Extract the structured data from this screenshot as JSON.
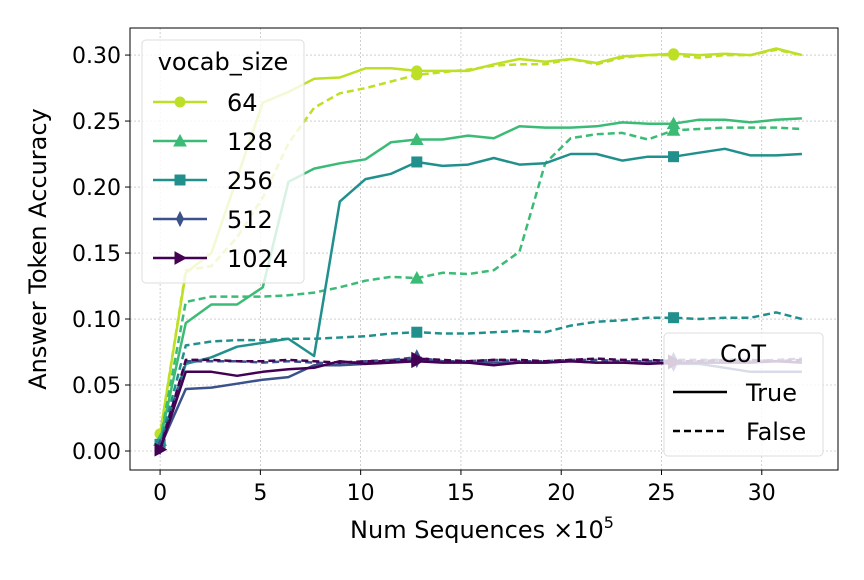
{
  "chart_data": {
    "type": "line",
    "title": "",
    "xlabel": "Num Sequences",
    "xlabel_multiplier": "×10",
    "xlabel_exponent": "5",
    "ylabel": "Answer Token Accuracy",
    "xlim": [
      -1.5,
      33.8
    ],
    "ylim": [
      -0.0144,
      0.3205
    ],
    "xticks": [
      0,
      5,
      10,
      15,
      20,
      25,
      30
    ],
    "xtick_labels": [
      "0",
      "5",
      "10",
      "15",
      "20",
      "25",
      "30"
    ],
    "yticks": [
      0,
      0.05,
      0.1,
      0.15,
      0.2,
      0.25,
      0.3
    ],
    "ytick_labels": [
      "0.00",
      "0.05",
      "0.10",
      "0.15",
      "0.20",
      "0.25",
      "0.30"
    ],
    "grid": true,
    "x": [
      0,
      1.28,
      2.56,
      3.84,
      5.12,
      6.4,
      7.68,
      8.96,
      10.24,
      11.52,
      12.8,
      14.08,
      15.36,
      16.64,
      17.92,
      19.2,
      20.48,
      21.76,
      23.04,
      24.32,
      25.6,
      26.88,
      28.16,
      29.44,
      30.72,
      32
    ],
    "marker_indices": [
      0,
      10,
      20
    ],
    "legend_vocab": {
      "title": "vocab_size",
      "placement": "upper-left",
      "entries": [
        {
          "label": "64",
          "color": "#bddf26",
          "marker": "circle"
        },
        {
          "label": "128",
          "color": "#3bbb75",
          "marker": "triangle-up"
        },
        {
          "label": "256",
          "color": "#21908d",
          "marker": "square"
        },
        {
          "label": "512",
          "color": "#3b528b",
          "marker": "thin-diamond"
        },
        {
          "label": "1024",
          "color": "#440154",
          "marker": "triangle-right"
        }
      ]
    },
    "legend_cot": {
      "title": "CoT",
      "placement": "lower-right",
      "entries": [
        {
          "label": "True",
          "style": "solid"
        },
        {
          "label": "False",
          "style": "dashed"
        }
      ]
    },
    "series": [
      {
        "vocab": "64",
        "cot": "True",
        "values": [
          0.013,
          0.135,
          0.15,
          0.207,
          0.264,
          0.272,
          0.282,
          0.283,
          0.29,
          0.29,
          0.288,
          0.288,
          0.288,
          0.293,
          0.297,
          0.295,
          0.297,
          0.294,
          0.299,
          0.3,
          0.301,
          0.3,
          0.301,
          0.3,
          0.305,
          0.3
        ]
      },
      {
        "vocab": "64",
        "cot": "False",
        "values": [
          0.013,
          0.137,
          0.14,
          0.162,
          0.192,
          0.233,
          0.26,
          0.271,
          0.275,
          0.28,
          0.285,
          0.287,
          0.289,
          0.292,
          0.293,
          0.293,
          0.297,
          0.293,
          0.298,
          0.3,
          0.3,
          0.298,
          0.3,
          0.3,
          0.304,
          0.3
        ]
      },
      {
        "vocab": "128",
        "cot": "True",
        "values": [
          0.008,
          0.097,
          0.111,
          0.111,
          0.124,
          0.204,
          0.214,
          0.218,
          0.221,
          0.234,
          0.236,
          0.236,
          0.239,
          0.237,
          0.246,
          0.245,
          0.245,
          0.246,
          0.249,
          0.248,
          0.248,
          0.251,
          0.251,
          0.249,
          0.251,
          0.252
        ]
      },
      {
        "vocab": "128",
        "cot": "False",
        "values": [
          0.008,
          0.113,
          0.117,
          0.117,
          0.117,
          0.118,
          0.12,
          0.124,
          0.129,
          0.132,
          0.131,
          0.135,
          0.134,
          0.137,
          0.151,
          0.218,
          0.237,
          0.24,
          0.241,
          0.236,
          0.243,
          0.244,
          0.245,
          0.245,
          0.245,
          0.244
        ]
      },
      {
        "vocab": "256",
        "cot": "True",
        "values": [
          0.005,
          0.066,
          0.071,
          0.079,
          0.082,
          0.085,
          0.072,
          0.189,
          0.206,
          0.21,
          0.219,
          0.216,
          0.217,
          0.222,
          0.217,
          0.218,
          0.225,
          0.225,
          0.22,
          0.223,
          0.223,
          0.226,
          0.229,
          0.224,
          0.224,
          0.225
        ]
      },
      {
        "vocab": "256",
        "cot": "False",
        "values": [
          0.005,
          0.08,
          0.083,
          0.084,
          0.084,
          0.085,
          0.085,
          0.086,
          0.087,
          0.089,
          0.09,
          0.089,
          0.089,
          0.09,
          0.091,
          0.09,
          0.095,
          0.098,
          0.099,
          0.101,
          0.101,
          0.1,
          0.101,
          0.101,
          0.105,
          0.1
        ]
      },
      {
        "vocab": "512",
        "cot": "True",
        "values": [
          0.003,
          0.047,
          0.048,
          0.051,
          0.054,
          0.056,
          0.065,
          0.065,
          0.066,
          0.069,
          0.069,
          0.068,
          0.067,
          0.067,
          0.067,
          0.067,
          0.068,
          0.067,
          0.067,
          0.067,
          0.066,
          0.066,
          0.063,
          0.06,
          0.06,
          0.06
        ]
      },
      {
        "vocab": "512",
        "cot": "False",
        "values": [
          0.003,
          0.068,
          0.068,
          0.068,
          0.067,
          0.068,
          0.067,
          0.066,
          0.068,
          0.069,
          0.071,
          0.068,
          0.068,
          0.069,
          0.068,
          0.068,
          0.069,
          0.069,
          0.068,
          0.068,
          0.069,
          0.069,
          0.069,
          0.068,
          0.069,
          0.07
        ]
      },
      {
        "vocab": "1024",
        "cot": "True",
        "values": [
          0.001,
          0.06,
          0.06,
          0.057,
          0.06,
          0.062,
          0.063,
          0.068,
          0.066,
          0.067,
          0.068,
          0.067,
          0.067,
          0.065,
          0.067,
          0.067,
          0.068,
          0.067,
          0.067,
          0.066,
          0.067,
          0.067,
          0.067,
          0.067,
          0.068,
          0.067
        ]
      },
      {
        "vocab": "1024",
        "cot": "False",
        "values": [
          0.001,
          0.069,
          0.069,
          0.068,
          0.068,
          0.069,
          0.068,
          0.067,
          0.068,
          0.068,
          0.07,
          0.069,
          0.068,
          0.069,
          0.069,
          0.068,
          0.069,
          0.07,
          0.069,
          0.069,
          0.068,
          0.068,
          0.069,
          0.069,
          0.068,
          0.069
        ]
      }
    ]
  }
}
